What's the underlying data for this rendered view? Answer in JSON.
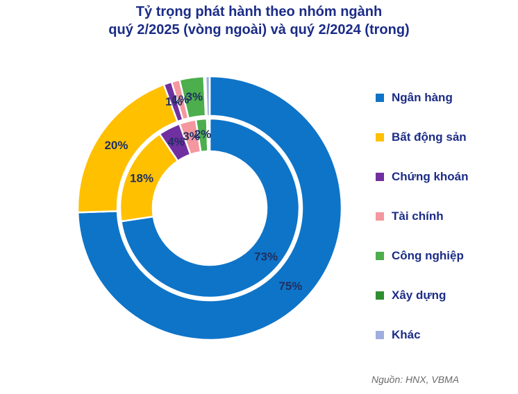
{
  "title": {
    "line1": "Tỷ trọng phát hành theo nhóm ngành",
    "line2": "quý 2/2025 (vòng ngoài) và quý 2/2024 (trong)"
  },
  "source": {
    "text": "Nguồn: HNX, VBMA"
  },
  "colors": {
    "title_text": "#1b2c87",
    "data_label_text": "#1f3061",
    "source_text": "#6a6a6a"
  },
  "chart_data": {
    "type": "pie",
    "subtype": "nested-donut",
    "title": "Tỷ trọng phát hành theo nhóm ngành quý 2/2025 (vòng ngoài) và quý 2/2024 (trong)",
    "legend_position": "right",
    "categories": [
      "Ngân hàng",
      "Bất động sản",
      "Chứng khoán",
      "Tài chính",
      "Công nghiệp",
      "Xây dựng",
      "Khác"
    ],
    "colors": [
      "#0e74c8",
      "#ffc000",
      "#7030a0",
      "#f4979e",
      "#4cae4c",
      "#2f8f2f",
      "#a0aedf"
    ],
    "series": [
      {
        "name": "Quý 2/2025 (vòng ngoài)",
        "ring": "outer",
        "values": [
          75,
          20,
          1,
          1,
          3,
          0.2,
          0.5
        ],
        "labels": [
          "75%",
          "20%",
          "1%",
          "1%",
          "3%",
          "",
          ""
        ]
      },
      {
        "name": "Quý 2/2024 (trong)",
        "ring": "inner",
        "values": [
          73,
          18,
          4,
          3,
          2,
          0.15,
          0.35
        ],
        "labels": [
          "73%",
          "18%",
          "4%",
          "3%",
          "2%",
          "",
          ""
        ]
      }
    ]
  }
}
